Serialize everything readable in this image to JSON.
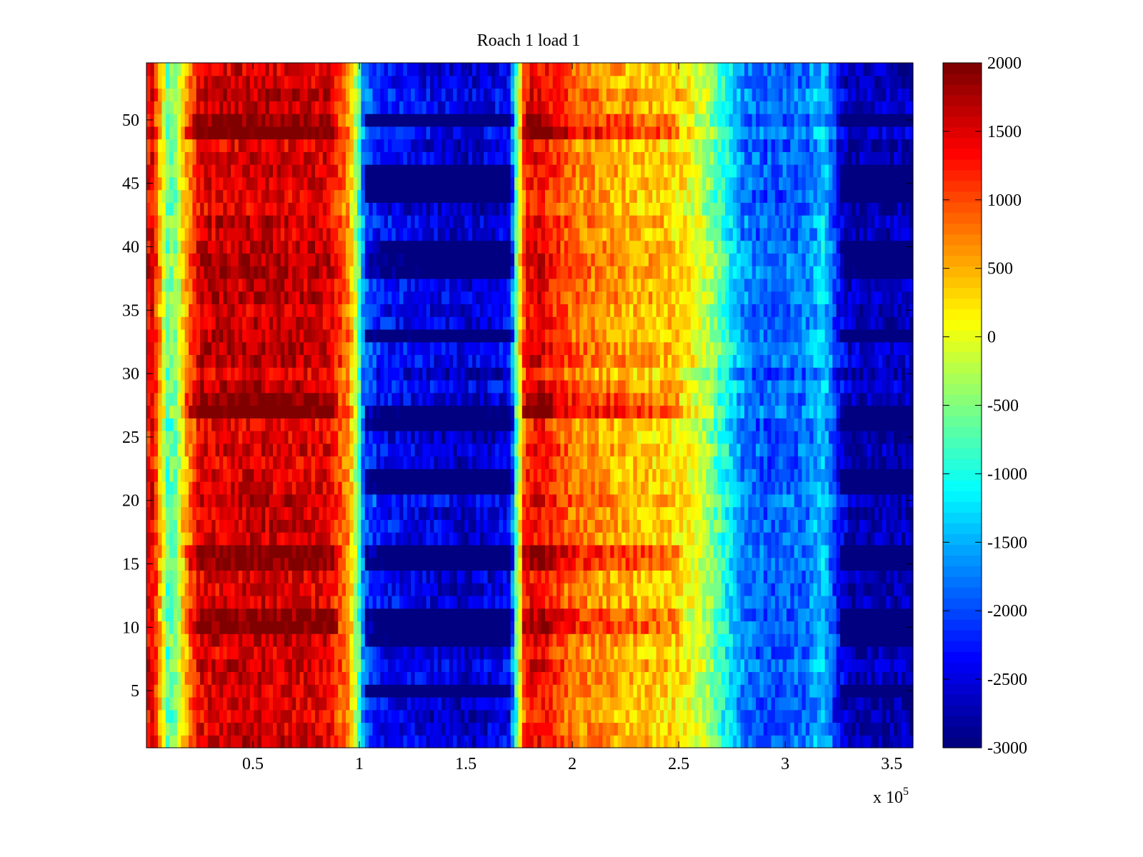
{
  "chart_data": {
    "type": "heatmap",
    "title": "Roach 1 load 1",
    "xlabel": "",
    "ylabel": "",
    "x_multiplier_label": "x 10",
    "x_multiplier_exponent": "5",
    "xlim": [
      0,
      3.6
    ],
    "ylim": [
      0.5,
      54.5
    ],
    "x_ticks": [
      0.5,
      1,
      1.5,
      2,
      2.5,
      3,
      3.5
    ],
    "x_tick_labels": [
      "0.5",
      "1",
      "1.5",
      "2",
      "2.5",
      "3",
      "3.5"
    ],
    "y_ticks": [
      5,
      10,
      15,
      20,
      25,
      30,
      35,
      40,
      45,
      50
    ],
    "y_tick_labels": [
      "5",
      "10",
      "15",
      "20",
      "25",
      "30",
      "35",
      "40",
      "45",
      "50"
    ],
    "rows": 54,
    "colormap": "jet",
    "colorbar": {
      "limits": [
        -3000,
        2000
      ],
      "ticks": [
        2000,
        1500,
        1000,
        500,
        0,
        -500,
        -1000,
        -1500,
        -2000,
        -2500,
        -3000
      ],
      "tick_labels": [
        "2000",
        "1500",
        "1000",
        "500",
        "0",
        "-500",
        "-1000",
        "-1500",
        "-2000",
        "-2500",
        "-3000"
      ],
      "levels": 64
    },
    "column_profile": {
      "x": [
        0.0,
        0.03,
        0.06,
        0.1,
        0.14,
        0.17,
        0.25,
        0.5,
        0.85,
        0.95,
        0.99,
        1.02,
        1.1,
        1.5,
        1.7,
        1.74,
        1.78,
        1.85,
        2.0,
        2.25,
        2.5,
        2.62,
        2.72,
        2.8,
        2.9,
        3.1,
        3.18,
        3.24,
        3.3,
        3.6
      ],
      "value": [
        1300,
        1500,
        600,
        -700,
        -500,
        300,
        1500,
        1600,
        1500,
        700,
        -400,
        -1800,
        -2300,
        -2600,
        -2400,
        -600,
        1300,
        1400,
        800,
        500,
        300,
        -200,
        -1000,
        -1700,
        -1900,
        -1800,
        -1300,
        -2200,
        -2700,
        -2700
      ]
    },
    "dark_blue_band_rows": [
      5,
      9,
      10,
      11,
      15,
      16,
      21,
      22,
      26,
      27,
      33,
      38,
      39,
      40,
      44,
      45,
      46,
      50
    ],
    "dark_red_band_rows": [
      10,
      11,
      15,
      16,
      27,
      28,
      49,
      50
    ]
  }
}
